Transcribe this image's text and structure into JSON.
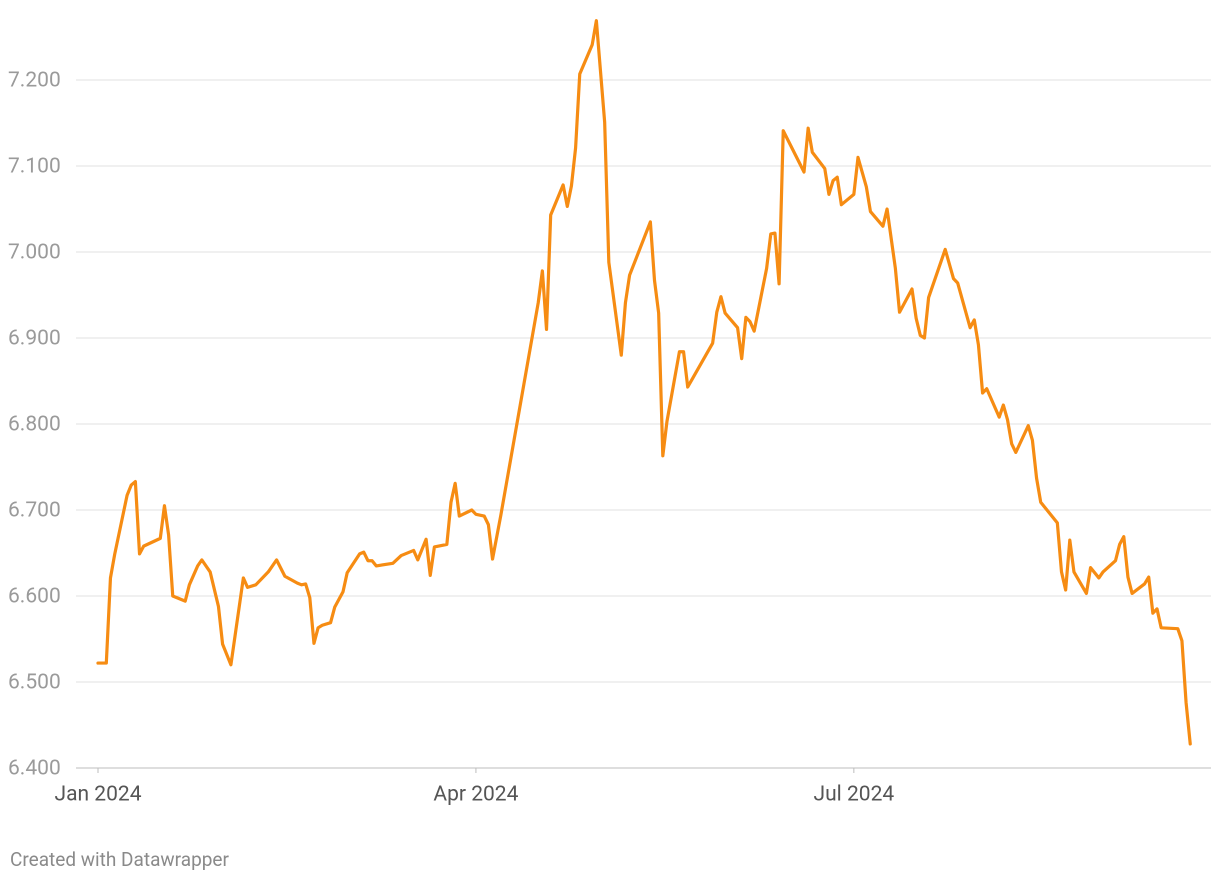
{
  "chart_data": {
    "type": "line",
    "footer": "Created with Datawrapper",
    "color": "#f68c13",
    "grid": true,
    "xlim": [
      0,
      268
    ],
    "xticks": [
      {
        "value": 0,
        "label": "Jan 2024"
      },
      {
        "value": 91,
        "label": "Apr 2024"
      },
      {
        "value": 182,
        "label": "Jul 2024"
      }
    ],
    "ylim": [
      6.4,
      7.2
    ],
    "yticks": [
      {
        "value": 6.4,
        "label": "6.400"
      },
      {
        "value": 6.5,
        "label": "6.500"
      },
      {
        "value": 6.6,
        "label": "6.600"
      },
      {
        "value": 6.7,
        "label": "6.700"
      },
      {
        "value": 6.8,
        "label": "6.800"
      },
      {
        "value": 6.9,
        "label": "6.900"
      },
      {
        "value": 7.0,
        "label": "7.000"
      },
      {
        "value": 7.1,
        "label": "7.100"
      },
      {
        "value": 7.2,
        "label": "7.200"
      }
    ],
    "x": [
      0,
      2,
      3,
      4,
      7,
      8,
      9,
      10,
      11,
      15,
      16,
      17,
      18,
      21,
      22,
      24,
      25,
      27,
      29,
      30,
      32,
      35,
      36,
      38,
      41,
      43,
      45,
      48,
      49,
      50,
      51,
      52,
      53,
      54,
      56,
      57,
      59,
      60,
      63,
      64,
      65,
      66,
      67,
      71,
      73,
      76,
      77,
      79,
      80,
      81,
      84,
      85,
      86,
      87,
      90,
      91,
      93,
      94,
      95,
      97,
      106,
      107,
      108,
      109,
      112,
      113,
      114,
      115,
      116,
      119,
      120,
      122,
      123,
      126,
      127,
      128,
      133,
      134,
      135,
      136,
      137,
      140,
      141,
      142,
      148,
      149,
      150,
      151,
      154,
      155,
      156,
      157,
      158,
      161,
      162,
      163,
      164,
      165,
      170,
      171,
      172,
      175,
      176,
      177,
      178,
      179,
      182,
      183,
      185,
      186,
      189,
      190,
      192,
      193,
      196,
      197,
      198,
      199,
      200,
      204,
      206,
      207,
      210,
      211,
      212,
      213,
      214,
      217,
      218,
      219,
      220,
      221,
      224,
      225,
      226,
      227,
      231,
      232,
      233,
      234,
      235,
      238,
      239,
      241,
      242,
      245,
      246,
      247,
      248,
      249,
      252,
      253,
      254,
      255,
      256,
      260,
      261,
      262,
      263
    ],
    "values": [
      6.522,
      6.522,
      6.621,
      6.648,
      6.717,
      6.729,
      6.733,
      6.649,
      6.658,
      6.667,
      6.705,
      6.671,
      6.6,
      6.594,
      6.613,
      6.635,
      6.642,
      6.628,
      6.588,
      6.544,
      6.52,
      6.621,
      6.61,
      6.613,
      6.628,
      6.642,
      6.623,
      6.615,
      6.613,
      6.614,
      6.598,
      6.545,
      6.563,
      6.566,
      6.569,
      6.587,
      6.605,
      6.627,
      6.649,
      6.651,
      6.641,
      6.641,
      6.635,
      6.638,
      6.647,
      6.653,
      6.642,
      6.666,
      6.624,
      6.657,
      6.66,
      6.709,
      6.731,
      6.693,
      6.7,
      6.695,
      6.693,
      6.683,
      6.643,
      6.694,
      6.941,
      6.978,
      6.91,
      7.043,
      7.078,
      7.053,
      7.077,
      7.121,
      7.207,
      7.241,
      7.269,
      7.151,
      6.988,
      6.88,
      6.941,
      6.973,
      7.035,
      6.967,
      6.929,
      6.763,
      6.803,
      6.884,
      6.884,
      6.843,
      6.894,
      6.93,
      6.948,
      6.929,
      6.912,
      6.876,
      6.924,
      6.919,
      6.908,
      6.981,
      7.021,
      7.022,
      6.963,
      7.141,
      7.093,
      7.144,
      7.116,
      7.097,
      7.067,
      7.083,
      7.087,
      7.055,
      7.067,
      7.11,
      7.076,
      7.047,
      7.03,
      7.05,
      6.981,
      6.93,
      6.957,
      6.923,
      6.903,
      6.9,
      6.947,
      7.003,
      6.969,
      6.964,
      6.912,
      6.921,
      6.892,
      6.836,
      6.841,
      6.808,
      6.822,
      6.805,
      6.777,
      6.767,
      6.798,
      6.781,
      6.737,
      6.709,
      6.685,
      6.628,
      6.607,
      6.665,
      6.628,
      6.603,
      6.633,
      6.621,
      6.628,
      6.641,
      6.66,
      6.669,
      6.622,
      6.603,
      6.614,
      6.622,
      6.58,
      6.585,
      6.563,
      6.562,
      6.548,
      6.476,
      6.428
    ]
  }
}
